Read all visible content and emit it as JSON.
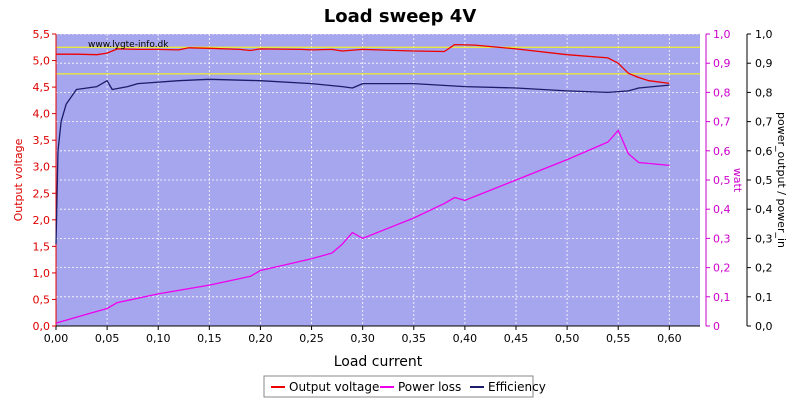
{
  "chart_data": {
    "type": "line",
    "title": "Load sweep 4V",
    "xlabel": "Load current",
    "watermark": "www.lygte-info.dk",
    "xlim": [
      0,
      0.63
    ],
    "xticks": [
      "0,00",
      "0,05",
      "0,10",
      "0,15",
      "0,20",
      "0,25",
      "0,30",
      "0,35",
      "0,40",
      "0,45",
      "0,50",
      "0,55",
      "0,60"
    ],
    "axes": {
      "left": {
        "label": "Output voltage",
        "lim": [
          0,
          5.5
        ],
        "color": "#dd0000",
        "ticks": [
          "0,0",
          "0,5",
          "1,0",
          "1,5",
          "2,0",
          "2,5",
          "3,0",
          "3,5",
          "4,0",
          "4,5",
          "5,0",
          "5,5"
        ]
      },
      "right1": {
        "label": "watt",
        "lim": [
          0,
          1.0
        ],
        "color": "#cc00cc",
        "ticks": [
          "0",
          "0,1",
          "0,2",
          "0,3",
          "0,4",
          "0,5",
          "0,6",
          "0,7",
          "0,8",
          "0,9",
          "1,0"
        ]
      },
      "right2": {
        "label": "power_output / power_in",
        "lim": [
          0,
          1.0
        ],
        "color": "#000000",
        "ticks": [
          "0,0",
          "0,1",
          "0,2",
          "0,3",
          "0,4",
          "0,5",
          "0,6",
          "0,7",
          "0,8",
          "0,9",
          "1,0"
        ]
      }
    },
    "reference_lines": [
      5.25,
      4.75
    ],
    "colors": {
      "plot_bg": "#a6a6ee",
      "grid": "#ffffff",
      "reference": "#ffff00"
    },
    "series": [
      {
        "name": "Output voltage",
        "axis": "left",
        "color": "#ee0000",
        "points": [
          [
            0,
            5.12
          ],
          [
            0.02,
            5.12
          ],
          [
            0.04,
            5.11
          ],
          [
            0.05,
            5.14
          ],
          [
            0.06,
            5.22
          ],
          [
            0.08,
            5.21
          ],
          [
            0.1,
            5.21
          ],
          [
            0.12,
            5.2
          ],
          [
            0.13,
            5.24
          ],
          [
            0.15,
            5.23
          ],
          [
            0.18,
            5.21
          ],
          [
            0.19,
            5.19
          ],
          [
            0.2,
            5.22
          ],
          [
            0.24,
            5.21
          ],
          [
            0.25,
            5.2
          ],
          [
            0.27,
            5.21
          ],
          [
            0.28,
            5.18
          ],
          [
            0.3,
            5.21
          ],
          [
            0.35,
            5.18
          ],
          [
            0.38,
            5.17
          ],
          [
            0.39,
            5.3
          ],
          [
            0.41,
            5.29
          ],
          [
            0.45,
            5.22
          ],
          [
            0.5,
            5.11
          ],
          [
            0.54,
            5.05
          ],
          [
            0.55,
            4.95
          ],
          [
            0.56,
            4.76
          ],
          [
            0.57,
            4.68
          ],
          [
            0.58,
            4.62
          ],
          [
            0.6,
            4.57
          ]
        ]
      },
      {
        "name": "Power loss",
        "axis": "right1",
        "color": "#ee00ee",
        "points": [
          [
            0,
            0.01
          ],
          [
            0.03,
            0.04
          ],
          [
            0.05,
            0.06
          ],
          [
            0.06,
            0.08
          ],
          [
            0.1,
            0.11
          ],
          [
            0.15,
            0.14
          ],
          [
            0.19,
            0.17
          ],
          [
            0.2,
            0.19
          ],
          [
            0.25,
            0.23
          ],
          [
            0.27,
            0.25
          ],
          [
            0.28,
            0.28
          ],
          [
            0.29,
            0.32
          ],
          [
            0.3,
            0.3
          ],
          [
            0.35,
            0.37
          ],
          [
            0.38,
            0.42
          ],
          [
            0.39,
            0.44
          ],
          [
            0.4,
            0.43
          ],
          [
            0.45,
            0.5
          ],
          [
            0.5,
            0.57
          ],
          [
            0.54,
            0.63
          ],
          [
            0.55,
            0.67
          ],
          [
            0.56,
            0.59
          ],
          [
            0.57,
            0.56
          ],
          [
            0.6,
            0.55
          ]
        ]
      },
      {
        "name": "Efficiency",
        "axis": "right2",
        "color": "#1c1c6b",
        "points": [
          [
            0,
            0.28
          ],
          [
            0.002,
            0.6
          ],
          [
            0.005,
            0.7
          ],
          [
            0.01,
            0.76
          ],
          [
            0.02,
            0.81
          ],
          [
            0.04,
            0.82
          ],
          [
            0.05,
            0.84
          ],
          [
            0.055,
            0.81
          ],
          [
            0.07,
            0.82
          ],
          [
            0.08,
            0.83
          ],
          [
            0.12,
            0.84
          ],
          [
            0.15,
            0.845
          ],
          [
            0.2,
            0.84
          ],
          [
            0.25,
            0.83
          ],
          [
            0.28,
            0.82
          ],
          [
            0.29,
            0.815
          ],
          [
            0.3,
            0.83
          ],
          [
            0.35,
            0.83
          ],
          [
            0.4,
            0.82
          ],
          [
            0.45,
            0.815
          ],
          [
            0.5,
            0.805
          ],
          [
            0.54,
            0.8
          ],
          [
            0.56,
            0.805
          ],
          [
            0.57,
            0.815
          ],
          [
            0.6,
            0.825
          ]
        ]
      }
    ]
  }
}
